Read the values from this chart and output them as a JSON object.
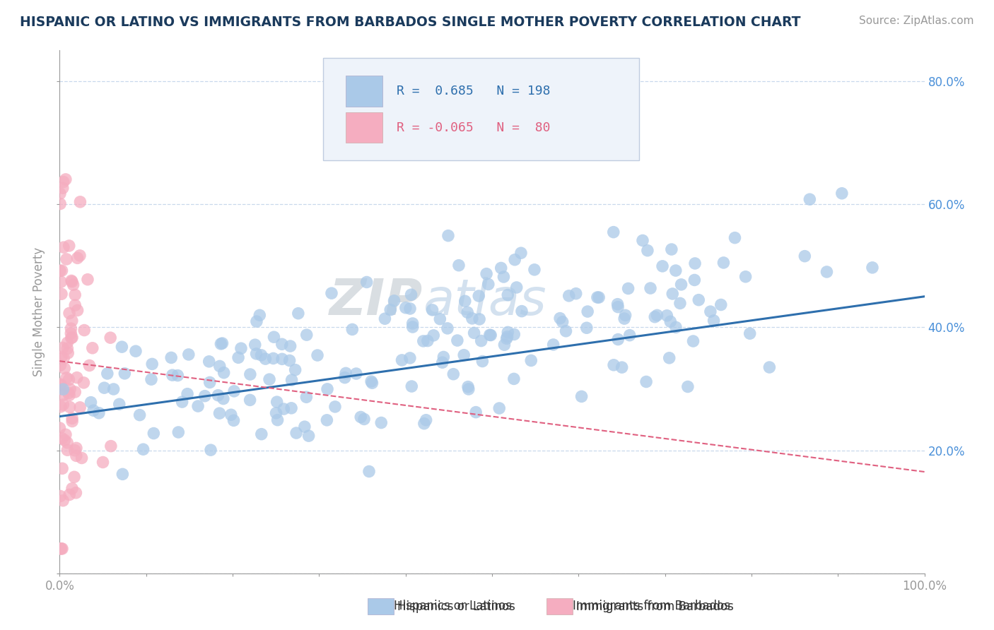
{
  "title": "HISPANIC OR LATINO VS IMMIGRANTS FROM BARBADOS SINGLE MOTHER POVERTY CORRELATION CHART",
  "source": "Source: ZipAtlas.com",
  "ylabel": "Single Mother Poverty",
  "blue_R": 0.685,
  "blue_N": 198,
  "pink_R": -0.065,
  "pink_N": 80,
  "blue_label": "Hispanics or Latinos",
  "pink_label": "Immigrants from Barbados",
  "xlim": [
    0,
    1.0
  ],
  "ylim": [
    0,
    0.85
  ],
  "blue_color": "#aac9e8",
  "pink_color": "#f5adc0",
  "blue_line_color": "#2e6fad",
  "pink_line_color": "#e06080",
  "background_color": "#ffffff",
  "title_color": "#1a3a5c",
  "axis_color": "#999999",
  "grid_color": "#c8d8ec",
  "legend_box_color": "#eef3fa",
  "watermark_zip_color": "#c0c8d0",
  "watermark_atlas_color": "#a8c4e0",
  "blue_legend_text_color": "#2e6fad",
  "pink_legend_text_color": "#e06080",
  "right_axis_color": "#4a90d9"
}
